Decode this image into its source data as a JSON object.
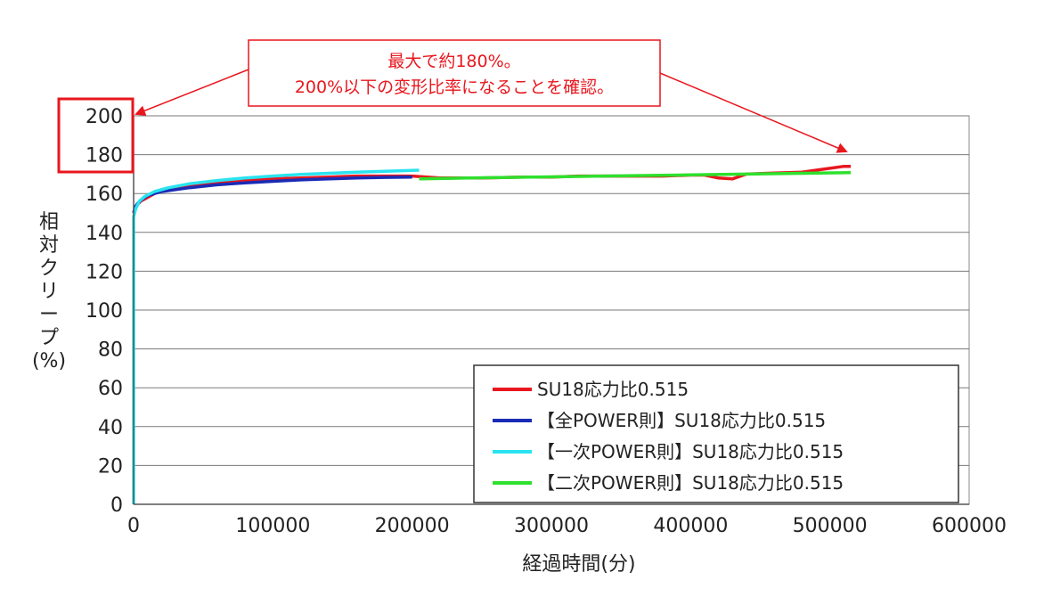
{
  "chart_data": {
    "type": "line",
    "xlabel": "経過時間(分)",
    "ylabel": "相対クリープ(%)",
    "xlim": [
      0,
      600000
    ],
    "ylim": [
      0,
      200
    ],
    "x_ticks": [
      "0",
      "100000",
      "200000",
      "300000",
      "400000",
      "500000",
      "600000"
    ],
    "y_ticks": [
      "0",
      "20",
      "40",
      "60",
      "80",
      "100",
      "120",
      "140",
      "160",
      "180",
      "200"
    ],
    "grid": "horizontal",
    "legend_position": "bottom-right",
    "annotation": {
      "line1": "最大で約180%。",
      "line2": "200%以下の変形比率になることを確認。"
    },
    "series": [
      {
        "name": "SU18応力比0.515",
        "color": "#e8171e",
        "points": [
          [
            1000,
            153
          ],
          [
            5000,
            156
          ],
          [
            10000,
            158
          ],
          [
            20000,
            162
          ],
          [
            30000,
            163
          ],
          [
            40000,
            163.5
          ],
          [
            60000,
            166
          ],
          [
            80000,
            167
          ],
          [
            100000,
            167.5
          ],
          [
            120000,
            168
          ],
          [
            140000,
            168.5
          ],
          [
            160000,
            169
          ],
          [
            180000,
            169
          ],
          [
            200000,
            169
          ],
          [
            220000,
            168
          ],
          [
            250000,
            168
          ],
          [
            280000,
            168.5
          ],
          [
            300000,
            168.5
          ],
          [
            320000,
            169
          ],
          [
            350000,
            169
          ],
          [
            380000,
            169
          ],
          [
            400000,
            169.5
          ],
          [
            410000,
            169.5
          ],
          [
            420000,
            168
          ],
          [
            430000,
            167.5
          ],
          [
            440000,
            170
          ],
          [
            460000,
            170.5
          ],
          [
            480000,
            171
          ],
          [
            500000,
            173
          ],
          [
            510000,
            174
          ],
          [
            515000,
            174
          ]
        ]
      },
      {
        "name": "【全POWER則】SU18応力比0.515",
        "color": "#1a2bb5",
        "points": [
          [
            0,
            150
          ],
          [
            1000,
            153
          ],
          [
            3000,
            155
          ],
          [
            6000,
            157
          ],
          [
            10000,
            159
          ],
          [
            20000,
            161
          ],
          [
            40000,
            163
          ],
          [
            60000,
            164.5
          ],
          [
            80000,
            165.5
          ],
          [
            100000,
            166.3
          ],
          [
            120000,
            167
          ],
          [
            140000,
            167.5
          ],
          [
            160000,
            168
          ],
          [
            180000,
            168.3
          ],
          [
            200000,
            168.5
          ]
        ]
      },
      {
        "name": "【一次POWER則】SU18応力比0.515",
        "color": "#29e3f0",
        "points": [
          [
            0,
            0
          ],
          [
            0,
            148
          ],
          [
            1500,
            152
          ],
          [
            4000,
            156
          ],
          [
            8000,
            158.5
          ],
          [
            15000,
            161
          ],
          [
            25000,
            163
          ],
          [
            40000,
            165
          ],
          [
            60000,
            166.7
          ],
          [
            80000,
            168
          ],
          [
            100000,
            169
          ],
          [
            120000,
            169.8
          ],
          [
            140000,
            170.4
          ],
          [
            160000,
            171
          ],
          [
            180000,
            171.4
          ],
          [
            205000,
            172
          ]
        ]
      },
      {
        "name": "【二次POWER則】SU18応力比0.515",
        "color": "#2ee02e",
        "points": [
          [
            205000,
            167.5
          ],
          [
            240000,
            168
          ],
          [
            280000,
            168.4
          ],
          [
            320000,
            168.8
          ],
          [
            360000,
            169.2
          ],
          [
            400000,
            169.6
          ],
          [
            440000,
            170
          ],
          [
            480000,
            170.4
          ],
          [
            515000,
            170.8
          ]
        ]
      }
    ]
  }
}
